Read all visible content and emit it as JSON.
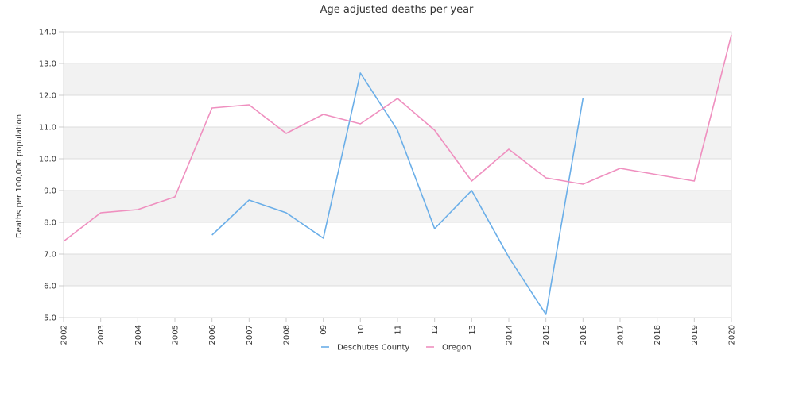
{
  "chart_data": {
    "type": "line",
    "title": "Age adjusted deaths per year",
    "xlabel": "",
    "ylabel": "Deaths per 100,000 population",
    "categories": [
      "2002",
      "2003",
      "2004",
      "2005",
      "2006",
      "2007",
      "2008",
      "09",
      "10",
      "11",
      "12",
      "13",
      "2014",
      "2015",
      "2016",
      "2017",
      "2018",
      "2019",
      "2020"
    ],
    "ylim": [
      5.0,
      14.0
    ],
    "yticks": [
      "5.0",
      "6.0",
      "7.0",
      "8.0",
      "9.0",
      "10.0",
      "11.0",
      "12.0",
      "13.0",
      "14.0"
    ],
    "grid": true,
    "legend_position": "bottom",
    "series": [
      {
        "name": "Deschutes County",
        "color": "#6aaee8",
        "values": [
          null,
          null,
          null,
          null,
          7.6,
          8.7,
          8.3,
          7.5,
          12.7,
          10.9,
          7.8,
          9.0,
          6.9,
          5.1,
          11.9,
          null,
          null,
          null,
          null
        ]
      },
      {
        "name": "Oregon",
        "color": "#ef8fbf",
        "values": [
          7.4,
          8.3,
          8.4,
          8.8,
          11.6,
          11.7,
          10.8,
          11.4,
          11.1,
          11.9,
          10.9,
          9.3,
          10.3,
          9.4,
          9.2,
          9.7,
          9.5,
          9.3,
          13.9
        ]
      }
    ]
  }
}
